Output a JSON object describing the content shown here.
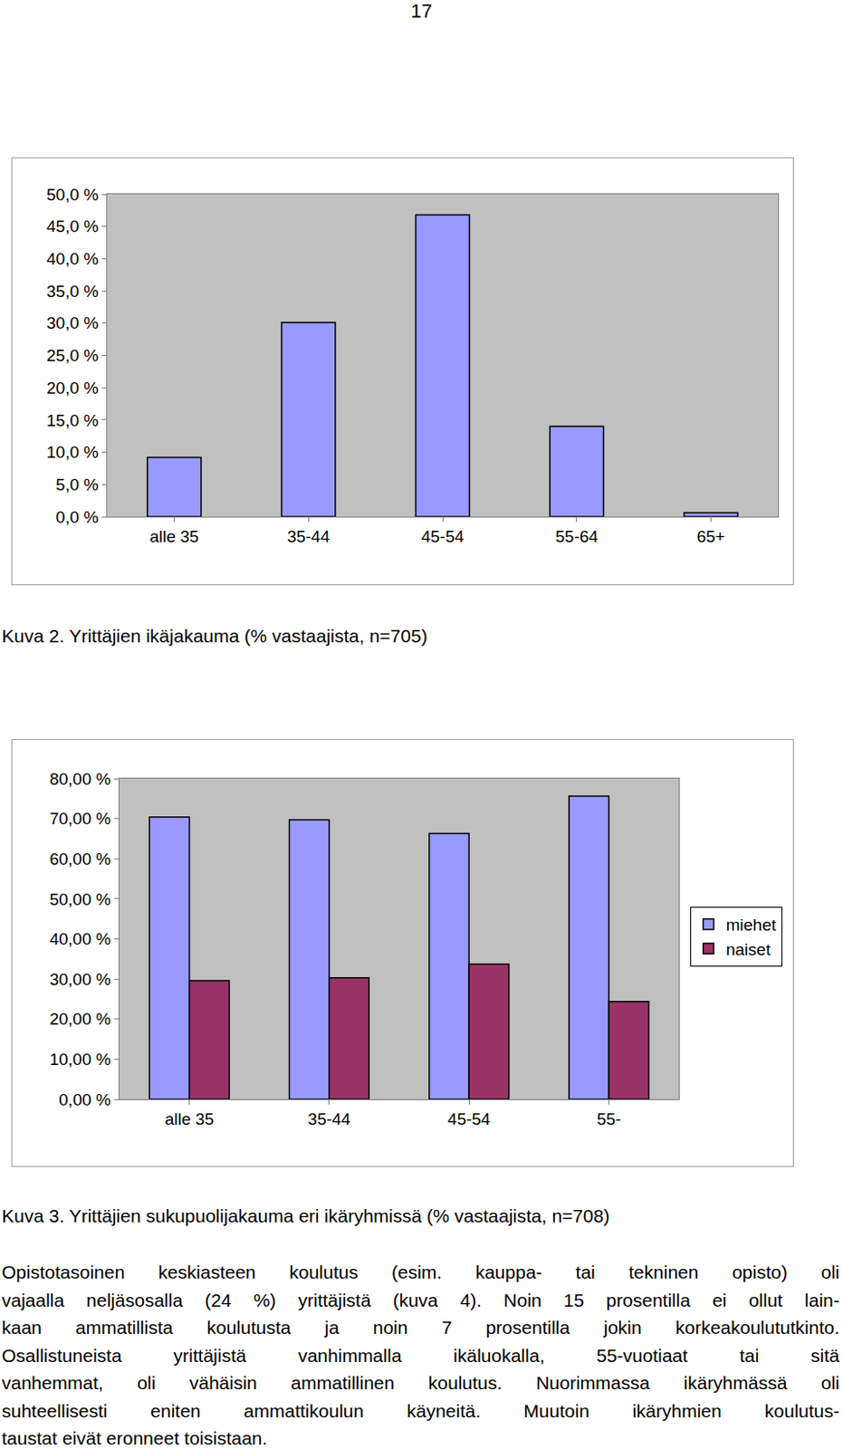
{
  "page_number": "17",
  "chart_data": [
    {
      "type": "bar",
      "categories": [
        "alle 35",
        "35-44",
        "45-54",
        "55-64",
        "65+"
      ],
      "values": [
        9.2,
        30.1,
        46.8,
        14.0,
        0.6
      ],
      "color": "#9999ff",
      "ylim": [
        0,
        50
      ],
      "yticks": [
        {
          "value": 0,
          "label": "0,0 %"
        },
        {
          "value": 5,
          "label": "5,0 %"
        },
        {
          "value": 10,
          "label": "10,0 %"
        },
        {
          "value": 15,
          "label": "15,0 %"
        },
        {
          "value": 20,
          "label": "20,0 %"
        },
        {
          "value": 25,
          "label": "25,0 %"
        },
        {
          "value": 30,
          "label": "30,0 %"
        },
        {
          "value": 35,
          "label": "35,0 %"
        },
        {
          "value": 40,
          "label": "40,0 %"
        },
        {
          "value": 45,
          "label": "45,0 %"
        },
        {
          "value": 50,
          "label": "50,0 %"
        }
      ],
      "grid": false
    },
    {
      "type": "bar",
      "categories": [
        "alle 35",
        "35-44",
        "45-54",
        "55-"
      ],
      "series": [
        {
          "name": "miehet",
          "color": "#9999ff",
          "values": [
            70.4,
            69.7,
            66.3,
            75.6
          ]
        },
        {
          "name": "naiset",
          "color": "#993366",
          "values": [
            29.6,
            30.3,
            33.7,
            24.4
          ]
        }
      ],
      "ylim": [
        0,
        80
      ],
      "yticks": [
        {
          "value": 0,
          "label": "0,00 %"
        },
        {
          "value": 10,
          "label": "10,00 %"
        },
        {
          "value": 20,
          "label": "20,00 %"
        },
        {
          "value": 30,
          "label": "30,00 %"
        },
        {
          "value": 40,
          "label": "40,00 %"
        },
        {
          "value": 50,
          "label": "50,00 %"
        },
        {
          "value": 60,
          "label": "60,00 %"
        },
        {
          "value": 70,
          "label": "70,00 %"
        },
        {
          "value": 80,
          "label": "80,00 %"
        }
      ],
      "grid": false,
      "legend": "right"
    }
  ],
  "captions": [
    "Kuva 2. Yrittäjien ikäjakauma (% vastaajista, n=705)",
    "Kuva 3. Yrittäjien sukupuolijakauma eri ikäryhmissä (% vastaajista, n=708)"
  ],
  "paragraph": [
    "Opistotasoinen keskiasteen koulutus (esim. kauppa- tai tekninen opisto) oli",
    "vajaalla neljäsosalla (24 %) yrittäjistä (kuva 4). Noin 15 prosentilla ei ollut lain-",
    "kaan ammatillista koulutusta ja noin 7 prosentilla jokin korkeakoulututkinto.",
    "Osallistuneista yrittäjistä vanhimmalla ikäluokalla, 55-vuotiaat tai sitä",
    "vanhemmat, oli vähäisin ammatillinen koulutus. Nuorimmassa ikäryhmässä oli",
    "suhteellisesti eniten ammattikoulun käyneitä. Muutoin ikäryhmien koulutus-",
    "taustat eivät eronneet toisistaan."
  ]
}
